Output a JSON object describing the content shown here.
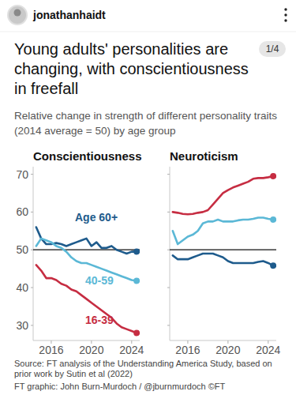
{
  "header": {
    "username": "jonathanhaidt",
    "badge": "1/4"
  },
  "title": "Young adults' personalities are changing, with conscientiousness in freefall",
  "subtitle": "Relative change in strength of different personality traits (2014 average = 50) by age group",
  "source": "Source: FT analysis of the Understanding America Study, based on prior work by Sutin et al (2022)",
  "credit": "FT graphic: John Burn-Murdoch / @jburnmurdoch ©FT",
  "chart_data": [
    {
      "type": "line",
      "title": "Conscientiousness",
      "x": [
        2014.5,
        2015,
        2015.5,
        2016,
        2016.5,
        2017,
        2017.5,
        2018,
        2018.5,
        2019,
        2019.5,
        2020,
        2020.5,
        2021,
        2021.5,
        2022,
        2022.5,
        2023,
        2023.5,
        2024,
        2024.5
      ],
      "xlim": [
        2014.2,
        2024.8
      ],
      "xticks": [
        2016,
        2020,
        2024
      ],
      "ylim": [
        26,
        72
      ],
      "yticks": [
        30,
        40,
        50,
        60,
        70
      ],
      "baseline": 50,
      "grid": false,
      "marker": "end",
      "series": [
        {
          "name": "Age 60+",
          "color": "#1e5b8c",
          "values": [
            56,
            53,
            51.5,
            51.5,
            51.8,
            51.5,
            51,
            51.5,
            52,
            52.5,
            53,
            51,
            52,
            50.5,
            50.5,
            51,
            50,
            49.5,
            49,
            49.5,
            49.5
          ]
        },
        {
          "name": "40-59",
          "color": "#5bb8d6",
          "values": [
            51,
            53,
            52.5,
            52,
            51,
            50.5,
            49.5,
            48,
            47,
            46.5,
            46.5,
            46,
            45.5,
            45,
            44.5,
            44,
            43.5,
            43,
            42.5,
            42,
            41.8
          ]
        },
        {
          "name": "16-39",
          "color": "#c62d42",
          "values": [
            46,
            44.5,
            42.5,
            42.5,
            42,
            41,
            40.5,
            39.5,
            39,
            38,
            37,
            36,
            35,
            34,
            33,
            32,
            30.5,
            29.5,
            29,
            28.5,
            28
          ]
        }
      ]
    },
    {
      "type": "line",
      "title": "Neuroticism",
      "x": [
        2014.5,
        2015,
        2015.5,
        2016,
        2016.5,
        2017,
        2017.5,
        2018,
        2018.5,
        2019,
        2019.5,
        2020,
        2020.5,
        2021,
        2021.5,
        2022,
        2022.5,
        2023,
        2023.5,
        2024,
        2024.5
      ],
      "xlim": [
        2014.2,
        2024.8
      ],
      "xticks": [
        2016,
        2020,
        2024
      ],
      "ylim": [
        26,
        72
      ],
      "yticks": [
        30,
        40,
        50,
        60,
        70
      ],
      "baseline": 50,
      "grid": false,
      "marker": "end",
      "tick_labels": "x",
      "series": [
        {
          "color": "#1e5b8c",
          "values": [
            48.5,
            47.5,
            47.5,
            47.5,
            48,
            48.5,
            49,
            49,
            49,
            48.5,
            48,
            47,
            46.5,
            46.5,
            46.5,
            46.5,
            46.5,
            46.8,
            47,
            46.5,
            45.8
          ]
        },
        {
          "color": "#5bb8d6",
          "values": [
            55,
            51.5,
            52.5,
            53.5,
            54,
            55,
            57,
            57.5,
            57.5,
            58,
            57.5,
            57.5,
            57.5,
            57.8,
            58,
            58,
            58.2,
            58.5,
            58.5,
            58.2,
            58
          ]
        },
        {
          "color": "#c62d42",
          "values": [
            60,
            59.8,
            59.5,
            59.4,
            59.5,
            59.8,
            60,
            60.5,
            62,
            63.5,
            65,
            65.8,
            66.5,
            67,
            67.5,
            68,
            68.8,
            69,
            69,
            69.2,
            69.5
          ]
        }
      ]
    }
  ]
}
